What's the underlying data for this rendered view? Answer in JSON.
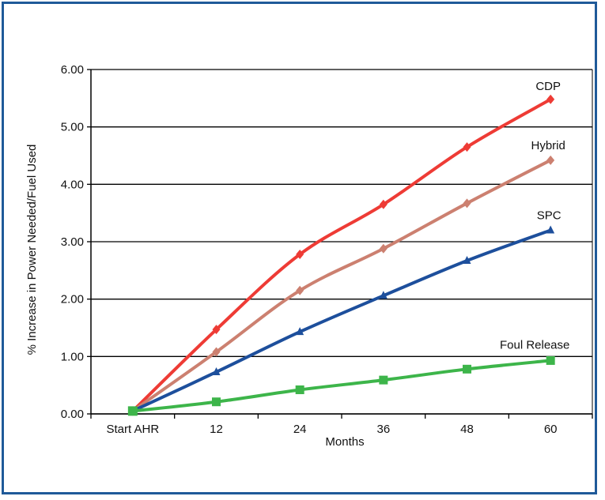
{
  "chart_data": {
    "type": "line",
    "title": "",
    "xlabel": "Months",
    "ylabel": "% Increase in Power Needed/Fuel Used",
    "categories": [
      "Start AHR",
      "12",
      "24",
      "36",
      "48",
      "60"
    ],
    "x": [
      0,
      12,
      24,
      36,
      48,
      60
    ],
    "ylim": [
      0,
      6
    ],
    "y_ticks": [
      "0.00",
      "1.00",
      "2.00",
      "3.00",
      "4.00",
      "5.00",
      "6.00"
    ],
    "grid": "horizontal",
    "legend": "inline labels at line ends",
    "series": [
      {
        "name": "CDP",
        "color": "#ee3b35",
        "marker": "diamond",
        "x": [
          0,
          12,
          24,
          36,
          48,
          60
        ],
        "values": [
          0.05,
          1.47,
          2.78,
          3.65,
          4.65,
          5.48
        ]
      },
      {
        "name": "Hybrid",
        "color": "#cc8070",
        "marker": "diamond",
        "x": [
          0,
          12,
          24,
          36,
          48,
          60
        ],
        "values": [
          0.05,
          1.08,
          2.15,
          2.88,
          3.67,
          4.42
        ]
      },
      {
        "name": "SPC",
        "color": "#1d4f9c",
        "marker": "triangle",
        "x": [
          0,
          12,
          24,
          36,
          48,
          60
        ],
        "values": [
          0.05,
          0.73,
          1.43,
          2.06,
          2.67,
          3.2
        ]
      },
      {
        "name": "Foul Release",
        "color": "#3db54a",
        "marker": "square",
        "x": [
          0,
          12,
          24,
          36,
          48,
          60
        ],
        "values": [
          0.05,
          0.21,
          0.42,
          0.59,
          0.78,
          0.93
        ]
      }
    ]
  }
}
